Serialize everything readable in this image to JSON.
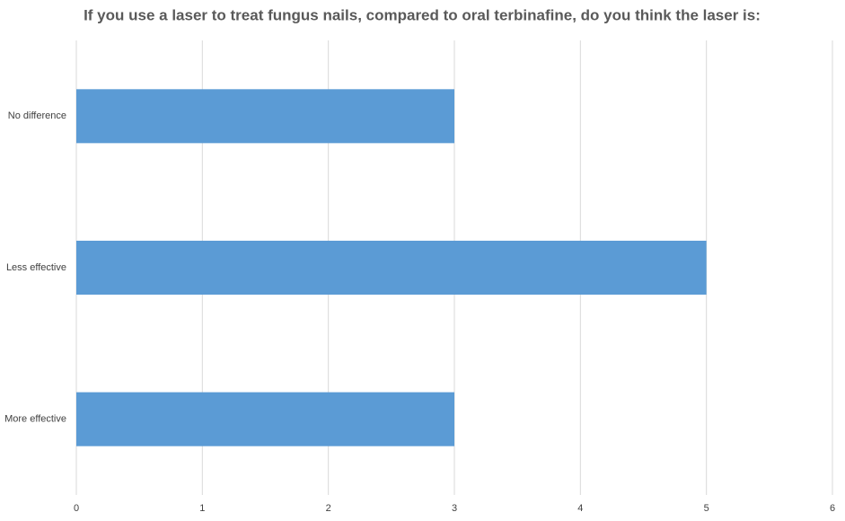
{
  "chart_data": {
    "type": "bar",
    "orientation": "horizontal",
    "title": "If you use a laser to treat fungus nails, compared to oral terbinafine, do you think the laser is:",
    "categories": [
      "No difference",
      "Less effective",
      "More effective"
    ],
    "values": [
      3,
      5,
      3
    ],
    "color": "#5b9bd5",
    "xlim": [
      0,
      6
    ],
    "xticks": [
      0,
      1,
      2,
      3,
      4,
      5,
      6
    ],
    "grid": true
  }
}
